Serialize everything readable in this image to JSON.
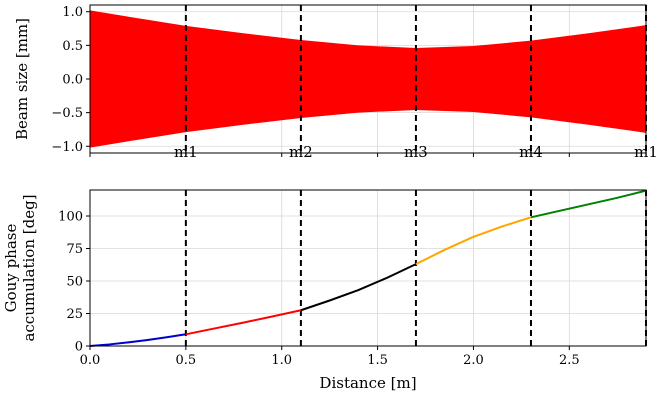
{
  "chart_data": [
    {
      "type": "area",
      "ylabel": "Beam size [mm]",
      "xlim": [
        0.0,
        2.9
      ],
      "ylim": [
        -1.1,
        1.1
      ],
      "yticks": [
        -1.0,
        -0.5,
        0.0,
        0.5,
        1.0
      ],
      "ytick_labels": [
        "−1.0",
        "−0.5",
        "0.0",
        "0.5",
        "1.0"
      ],
      "grid": true,
      "fill_color": "#ff0000",
      "x": [
        0.0,
        0.3,
        0.5,
        0.8,
        1.1,
        1.4,
        1.7,
        2.0,
        2.3,
        2.6,
        2.9
      ],
      "upper": [
        1.02,
        0.88,
        0.79,
        0.68,
        0.58,
        0.5,
        0.46,
        0.49,
        0.57,
        0.68,
        0.8
      ],
      "lower": [
        -1.02,
        -0.88,
        -0.79,
        -0.68,
        -0.58,
        -0.5,
        -0.46,
        -0.49,
        -0.57,
        -0.68,
        -0.8
      ],
      "markers": [
        {
          "x": 0.5,
          "label": "m1"
        },
        {
          "x": 1.1,
          "label": "m2"
        },
        {
          "x": 1.7,
          "label": "m3"
        },
        {
          "x": 2.3,
          "label": "m4"
        },
        {
          "x": 2.9,
          "label": "m1"
        }
      ]
    },
    {
      "type": "line",
      "xlabel": "Distance [m]",
      "ylabel_lines": [
        "Gouy phase",
        "accumulation [deg]"
      ],
      "xlim": [
        0.0,
        2.9
      ],
      "ylim": [
        0,
        120
      ],
      "xticks": [
        0.0,
        0.5,
        1.0,
        1.5,
        2.0,
        2.5
      ],
      "xtick_labels": [
        "0.0",
        "0.5",
        "1.0",
        "1.5",
        "2.0",
        "2.5"
      ],
      "yticks": [
        0,
        25,
        50,
        75,
        100
      ],
      "ytick_labels": [
        "0",
        "25",
        "50",
        "75",
        "100"
      ],
      "grid": true,
      "markers_x": [
        0.5,
        1.1,
        1.7,
        2.3,
        2.9
      ],
      "series": [
        {
          "color": "#0000cc",
          "x": [
            0.0,
            0.1,
            0.2,
            0.3,
            0.4,
            0.5
          ],
          "y": [
            0.0,
            1.2,
            2.8,
            4.6,
            6.7,
            9.0
          ]
        },
        {
          "color": "#ff0000",
          "x": [
            0.5,
            0.65,
            0.8,
            0.95,
            1.1
          ],
          "y": [
            9.0,
            13.5,
            18.0,
            22.7,
            27.5
          ]
        },
        {
          "color": "#000000",
          "x": [
            1.1,
            1.25,
            1.4,
            1.55,
            1.7
          ],
          "y": [
            27.5,
            35.0,
            43.0,
            52.5,
            63.0
          ]
        },
        {
          "color": "#ffa500",
          "x": [
            1.7,
            1.85,
            2.0,
            2.15,
            2.3
          ],
          "y": [
            63.0,
            74.0,
            84.0,
            92.0,
            99.0
          ]
        },
        {
          "color": "#008000",
          "x": [
            2.3,
            2.45,
            2.6,
            2.75,
            2.9
          ],
          "y": [
            99.0,
            104.0,
            109.0,
            114.0,
            119.5
          ]
        }
      ]
    }
  ]
}
